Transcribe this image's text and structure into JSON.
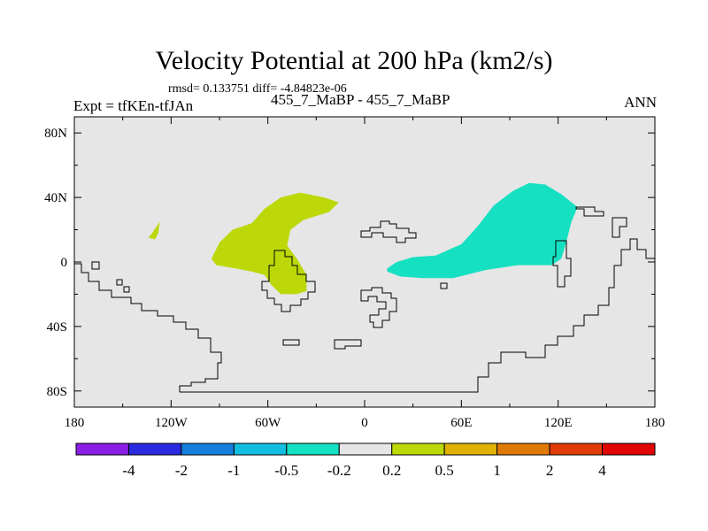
{
  "title": "Velocity Potential at 200 hPa (km2/s)",
  "rmsd_text": "rmsd= 0.133751 diff= -4.84823e-06",
  "experiment_label": "Expt = tfKEn-tfJAn",
  "cases_label": "455_7_MaBP - 455_7_MaBP",
  "season_label": "ANN",
  "chart_data": {
    "type": "heatmap",
    "map": "world-map-filled-contours",
    "xlim": [
      -180,
      180
    ],
    "ylim": [
      -90,
      90
    ],
    "x_ticks": [
      {
        "value": -180,
        "label": "180"
      },
      {
        "value": -120,
        "label": "120W"
      },
      {
        "value": -60,
        "label": "60W"
      },
      {
        "value": 0,
        "label": "0"
      },
      {
        "value": 60,
        "label": "60E"
      },
      {
        "value": 120,
        "label": "120E"
      },
      {
        "value": 180,
        "label": "180"
      }
    ],
    "y_ticks": [
      {
        "value": 80,
        "label": "80N"
      },
      {
        "value": 40,
        "label": "40N"
      },
      {
        "value": 0,
        "label": "0"
      },
      {
        "value": -40,
        "label": "40S"
      },
      {
        "value": -80,
        "label": "80S"
      }
    ],
    "background_color": "#e6e6e6",
    "contour_levels": [
      -4,
      -2,
      -1,
      -0.5,
      -0.2,
      0.2,
      0.5,
      1,
      2,
      4
    ],
    "contour_level_labels": [
      "-4",
      "-2",
      "-1",
      "-0.5",
      "-0.2",
      "0.2",
      "0.5",
      "1",
      "2",
      "4"
    ],
    "colors": [
      "#8a1ee6",
      "#2a2ae0",
      "#1580dc",
      "#12bedf",
      "#16e0c2",
      "#e6e6e6",
      "#bcd808",
      "#e0b206",
      "#e07a06",
      "#e23c06",
      "#e00606"
    ],
    "regions": [
      {
        "level_range": "0.2 to 0.5",
        "color": "#bcd808",
        "polygon": [
          [
            -95,
            2
          ],
          [
            -90,
            12
          ],
          [
            -82,
            20
          ],
          [
            -70,
            24
          ],
          [
            -62,
            33
          ],
          [
            -52,
            40
          ],
          [
            -40,
            43
          ],
          [
            -25,
            40
          ],
          [
            -16,
            37
          ],
          [
            -22,
            31
          ],
          [
            -38,
            26
          ],
          [
            -46,
            20
          ],
          [
            -48,
            10
          ],
          [
            -42,
            2
          ],
          [
            -36,
            -8
          ],
          [
            -36,
            -18
          ],
          [
            -42,
            -20
          ],
          [
            -52,
            -20
          ],
          [
            -58,
            -14
          ],
          [
            -62,
            -8
          ],
          [
            -70,
            -6
          ],
          [
            -80,
            -4
          ],
          [
            -92,
            -2
          ]
        ]
      },
      {
        "level_range": "0.2 to 0.5",
        "color": "#bcd808",
        "polygon": [
          [
            -134,
            15
          ],
          [
            -131,
            19
          ],
          [
            -127,
            25
          ],
          [
            -128,
            18
          ],
          [
            -130,
            14
          ]
        ]
      },
      {
        "level_range": "-0.5 to -0.2",
        "color": "#16e0c2",
        "polygon": [
          [
            14,
            -4
          ],
          [
            20,
            0
          ],
          [
            30,
            3
          ],
          [
            44,
            4
          ],
          [
            60,
            11
          ],
          [
            70,
            22
          ],
          [
            80,
            35
          ],
          [
            92,
            44
          ],
          [
            102,
            49
          ],
          [
            112,
            48
          ],
          [
            122,
            42
          ],
          [
            132,
            34
          ],
          [
            128,
            24
          ],
          [
            125,
            12
          ],
          [
            122,
            2
          ],
          [
            116,
            -2
          ],
          [
            95,
            -2
          ],
          [
            75,
            -5
          ],
          [
            55,
            -10
          ],
          [
            36,
            -10
          ],
          [
            22,
            -9
          ],
          [
            14,
            -6
          ]
        ]
      }
    ]
  },
  "colorbar": {
    "labels": [
      "-4",
      "-2",
      "-1",
      "-0.5",
      "-0.2",
      "0.2",
      "0.5",
      "1",
      "2",
      "4"
    ]
  }
}
